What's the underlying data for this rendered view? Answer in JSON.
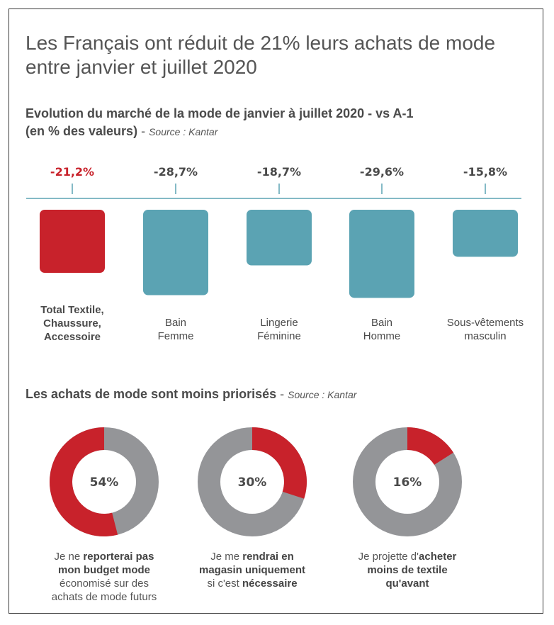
{
  "headline": "Les Français ont réduit de 21% leurs achats de mode entre janvier et juillet 2020",
  "section1": {
    "title_line1": "Evolution du marché de la mode de janvier à juillet 2020 - vs A-1",
    "title_line2": "(en % des valeurs)",
    "dash": "-",
    "source": "Source : Kantar"
  },
  "section2": {
    "title": "Les achats de mode sont moins priorisés",
    "dash": "-",
    "source": "Source : Kantar"
  },
  "colors": {
    "red": "#c8222b",
    "teal": "#5ba3b3",
    "grey": "#949598",
    "text": "#4a4a4a"
  },
  "chart_data": [
    {
      "type": "bar",
      "title": "Evolution du marché de la mode de janvier à juillet 2020 - vs A-1",
      "categories": [
        [
          "Total Textile,",
          "Chaussure,",
          "Accessoire"
        ],
        [
          "Bain",
          "Femme"
        ],
        [
          "Lingerie",
          "Féminine"
        ],
        [
          "Bain",
          "Homme"
        ],
        [
          "Sous-vêtements",
          "masculin"
        ]
      ],
      "values": [
        -21.2,
        -28.7,
        -18.7,
        -29.6,
        -15.8
      ],
      "value_labels": [
        "-21,2%",
        "-28,7%",
        "-18,7%",
        "-29,6%",
        "-15,8%"
      ],
      "highlight_index": 0,
      "ylim": [
        -30,
        0
      ]
    },
    {
      "type": "pie",
      "title": "Les achats de mode sont moins priorisés",
      "items": [
        {
          "value": 54,
          "label": "54%",
          "caption": [
            [
              [
                "Je ne ",
                false
              ],
              [
                "reporterai pas",
                true
              ]
            ],
            [
              [
                "mon budget mode",
                true
              ]
            ],
            [
              [
                "économisé sur des",
                false
              ]
            ],
            [
              [
                "achats de mode futurs",
                false
              ]
            ]
          ]
        },
        {
          "value": 30,
          "label": "30%",
          "caption": [
            [
              [
                "Je me ",
                false
              ],
              [
                "rendrai en",
                true
              ]
            ],
            [
              [
                "magasin uniquement",
                true
              ]
            ],
            [
              [
                "si c'est ",
                false
              ],
              [
                "nécessaire",
                true
              ]
            ]
          ]
        },
        {
          "value": 16,
          "label": "16%",
          "caption": [
            [
              [
                "Je projette d'",
                false
              ],
              [
                "acheter",
                true
              ]
            ],
            [
              [
                "moins de textile",
                true
              ]
            ],
            [
              [
                "qu'avant",
                true
              ]
            ]
          ]
        }
      ]
    }
  ]
}
